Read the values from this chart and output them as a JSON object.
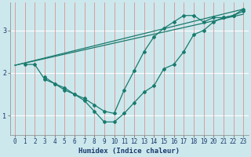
{
  "xlabel": "Humidex (Indice chaleur)",
  "bg_color": "#cce8ec",
  "grid_color_h": "#ffffff",
  "grid_color_v": "#e08080",
  "line_color": "#1a7a6e",
  "xlim": [
    -0.5,
    23.5
  ],
  "ylim": [
    0.55,
    3.65
  ],
  "yticks": [
    1,
    2,
    3
  ],
  "xticks": [
    0,
    1,
    2,
    3,
    4,
    5,
    6,
    7,
    8,
    9,
    10,
    11,
    12,
    13,
    14,
    15,
    16,
    17,
    18,
    19,
    20,
    21,
    22,
    23
  ],
  "lines": [
    {
      "x": [
        1,
        2,
        3,
        4,
        5,
        6,
        7,
        8,
        9,
        10,
        11,
        12,
        13,
        14,
        15,
        16,
        17,
        18,
        19,
        20,
        21,
        22,
        23
      ],
      "y": [
        2.2,
        2.2,
        1.85,
        1.75,
        1.6,
        1.5,
        1.35,
        1.1,
        0.85,
        0.85,
        1.05,
        1.3,
        1.55,
        1.7,
        2.1,
        2.2,
        2.5,
        2.9,
        3.0,
        3.2,
        3.3,
        3.35,
        3.45
      ],
      "marker": true
    },
    {
      "x": [
        3,
        4,
        5,
        6,
        7,
        8,
        9,
        10,
        11,
        12,
        13,
        14,
        15,
        16,
        17,
        18,
        19,
        20,
        21,
        22,
        23
      ],
      "y": [
        1.9,
        1.75,
        1.65,
        1.5,
        1.4,
        1.25,
        1.1,
        1.05,
        1.6,
        2.05,
        2.5,
        2.85,
        3.05,
        3.2,
        3.35,
        3.35,
        3.2,
        3.3,
        3.3,
        3.35,
        3.5
      ],
      "marker": true
    },
    {
      "x": [
        0,
        23
      ],
      "y": [
        2.18,
        3.5
      ],
      "marker": false
    },
    {
      "x": [
        0,
        23
      ],
      "y": [
        2.18,
        3.38
      ],
      "marker": false
    }
  ],
  "xlabel_color": "#1a3a6e",
  "xlabel_fontsize": 6.5,
  "tick_fontsize": 5.5,
  "tick_color": "#1a3a6e"
}
